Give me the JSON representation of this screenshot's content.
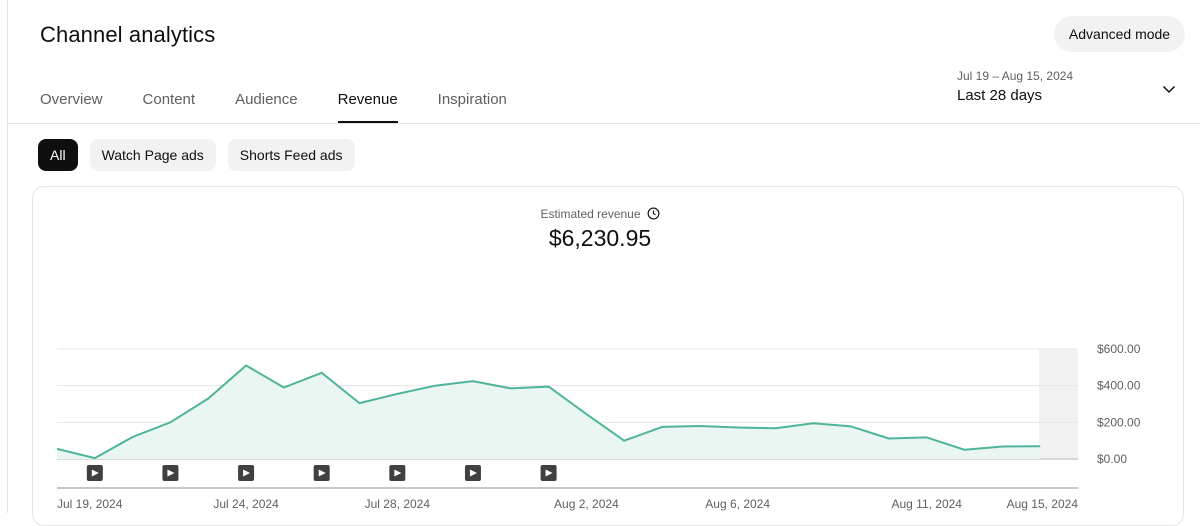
{
  "header": {
    "title": "Channel analytics",
    "advanced_mode_label": "Advanced mode"
  },
  "tabs": [
    {
      "label": "Overview"
    },
    {
      "label": "Content"
    },
    {
      "label": "Audience"
    },
    {
      "label": "Revenue",
      "active": true
    },
    {
      "label": "Inspiration"
    }
  ],
  "date_range": {
    "range_text": "Jul 19 – Aug 15, 2024",
    "preset": "Last 28 days",
    "icon": "chevron-down-icon"
  },
  "filters": [
    {
      "label": "All",
      "active": true
    },
    {
      "label": "Watch Page ads"
    },
    {
      "label": "Shorts Feed ads"
    }
  ],
  "metric": {
    "label": "Estimated revenue",
    "value": "$6,230.95",
    "icon": "clock-icon"
  },
  "colors": {
    "line": "#4fb49b",
    "area": "#e9f6f2",
    "accent_dark": "#0f0f0f"
  },
  "chart_data": {
    "type": "area",
    "x": [
      "2024-07-19",
      "2024-07-20",
      "2024-07-21",
      "2024-07-22",
      "2024-07-23",
      "2024-07-24",
      "2024-07-25",
      "2024-07-26",
      "2024-07-27",
      "2024-07-28",
      "2024-07-29",
      "2024-07-30",
      "2024-07-31",
      "2024-08-01",
      "2024-08-02",
      "2024-08-03",
      "2024-08-04",
      "2024-08-05",
      "2024-08-06",
      "2024-08-07",
      "2024-08-08",
      "2024-08-09",
      "2024-08-10",
      "2024-08-11",
      "2024-08-12",
      "2024-08-13",
      "2024-08-14"
    ],
    "values": [
      55,
      5,
      120,
      200,
      330,
      510,
      390,
      470,
      305,
      355,
      400,
      425,
      385,
      395,
      245,
      100,
      175,
      180,
      172,
      168,
      195,
      178,
      112,
      118,
      50,
      68,
      70
    ],
    "x_tick_labels": [
      "Jul 19, 2024",
      "Jul 24, 2024",
      "Jul 28, 2024",
      "Aug 2, 2024",
      "Aug 6, 2024",
      "Aug 11, 2024",
      "Aug 15, 2024"
    ],
    "y_tick_labels": [
      "$600.00",
      "$400.00",
      "$200.00",
      "$0.00"
    ],
    "y_ticks": [
      600,
      400,
      200,
      0
    ],
    "ylim": [
      0,
      600
    ],
    "video_markers": [
      "2024-07-20",
      "2024-07-22",
      "2024-07-24",
      "2024-07-26",
      "2024-07-28",
      "2024-07-30",
      "2024-08-01"
    ],
    "pending_region": "2024-08-14 to 2024-08-15",
    "grid": true,
    "title": "",
    "xlabel": "",
    "ylabel": ""
  }
}
